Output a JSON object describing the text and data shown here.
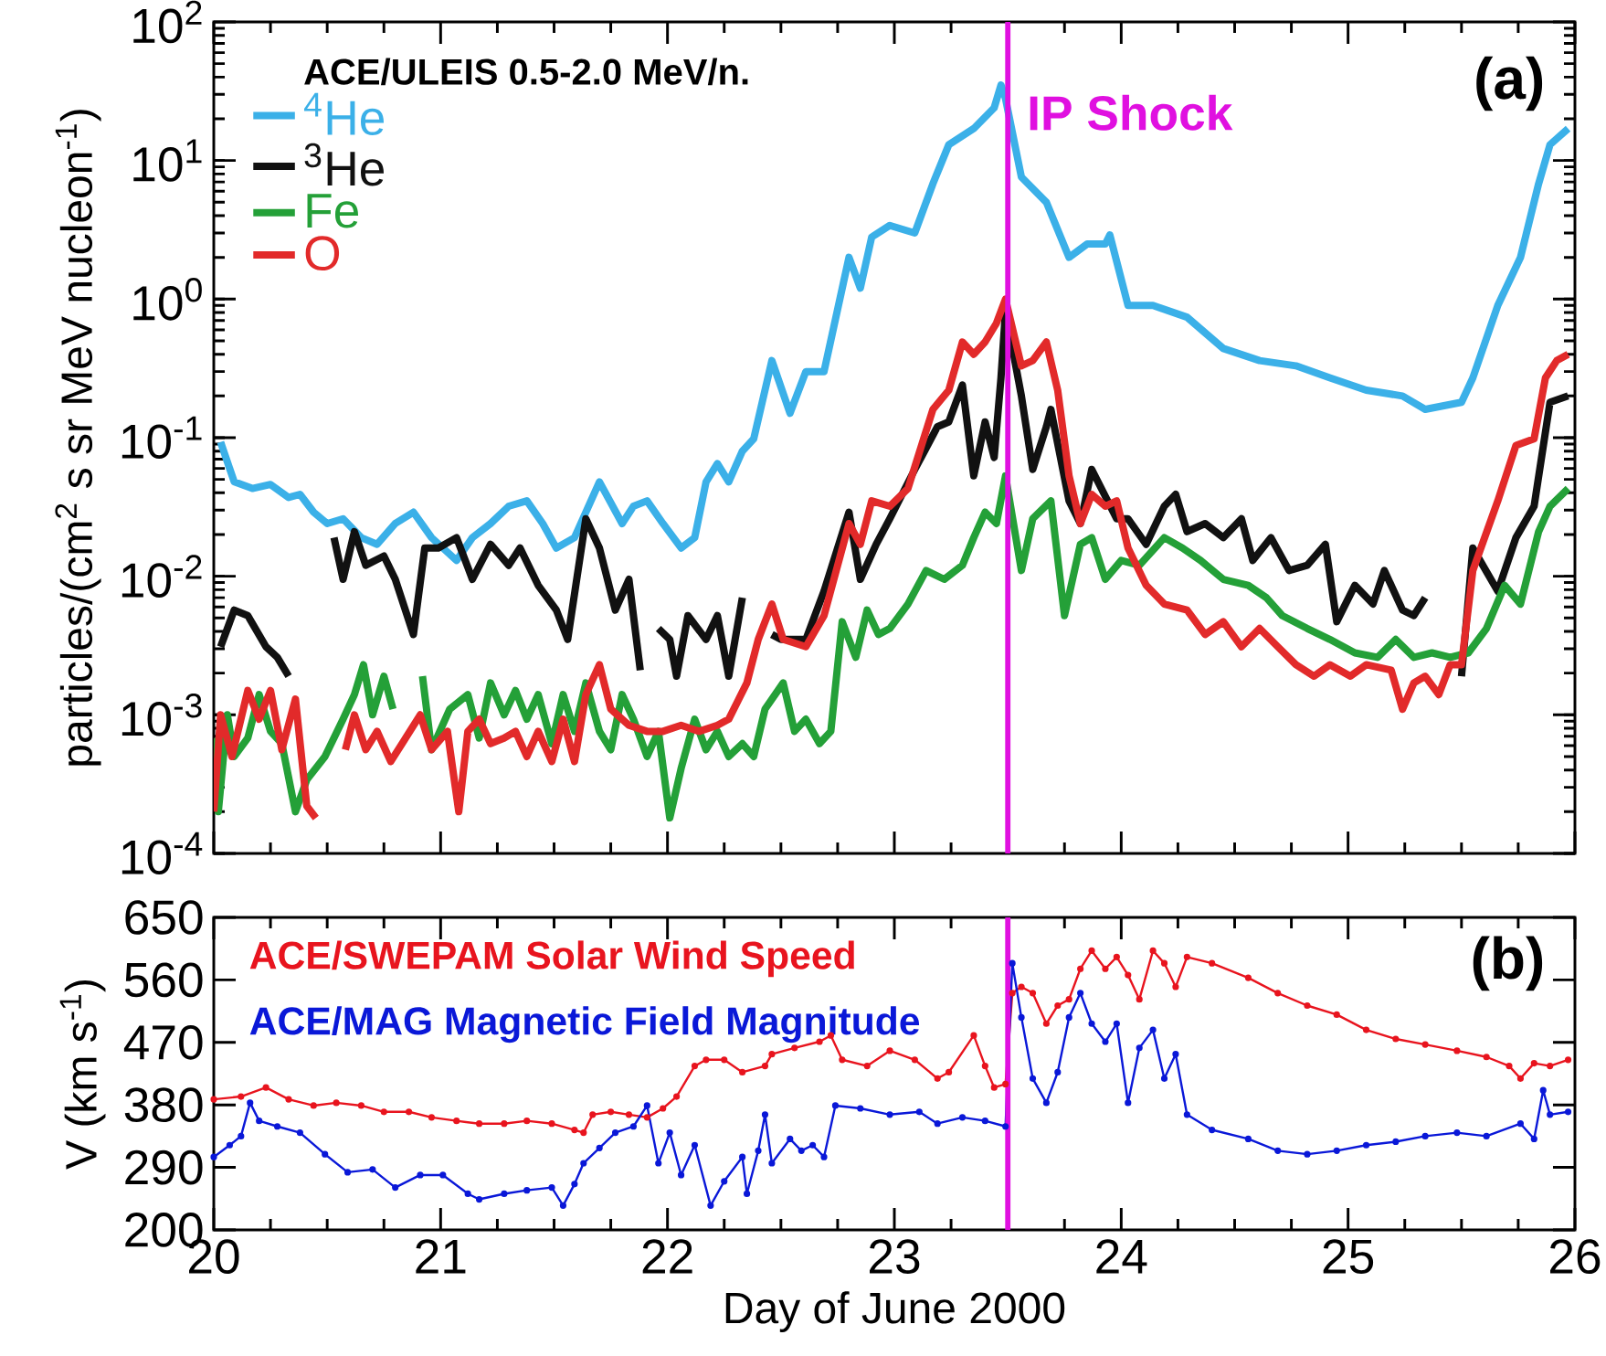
{
  "chart_data": [
    {
      "type": "line",
      "ylabel": "particles/(cm$^{2}$ s sr MeV nucleon$^{-1}$)",
      "legend_title": "ACE/ULEIS 0.5-2.0 MeV/n.",
      "legend": "top left",
      "log": "y",
      "marker": "none",
      "line_style": "solid",
      "tick_labels": "y",
      "xlim": [
        20,
        26
      ],
      "xticks": [
        20,
        21,
        22,
        23,
        24,
        25,
        26
      ],
      "ylim": [
        0.0001,
        100
      ],
      "yticks": [
        {
          "value": 0.0001,
          "label": "10$^{-4}$"
        },
        {
          "value": 0.001,
          "label": "10$^{-3}$"
        },
        {
          "value": 0.01,
          "label": "10$^{-2}$"
        },
        {
          "value": 0.1,
          "label": "10$^{-1}$"
        },
        {
          "value": 1,
          "label": "10$^{0}$"
        },
        {
          "value": 10,
          "label": "10$^{1}$"
        },
        {
          "value": 100,
          "label": "10$^{2}$"
        }
      ],
      "ref_lines": [
        {
          "axis": "x",
          "value": 23.5,
          "label": "IP Shock",
          "color": "#e010e0"
        }
      ],
      "annotations": [
        "(a)"
      ],
      "series": [
        {
          "name": "$^{4}$He",
          "color": "#3bb0e8",
          "x": [
            20.03,
            20.09,
            20.17,
            20.25,
            20.33,
            20.38,
            20.44,
            20.5,
            20.57,
            20.65,
            20.72,
            20.8,
            20.88,
            20.96,
            21.07,
            21.14,
            21.22,
            21.3,
            21.38,
            21.45,
            21.51,
            21.59,
            21.7,
            21.8,
            21.85,
            21.91,
            21.98,
            22.06,
            22.12,
            22.17,
            22.22,
            22.27,
            22.33,
            22.38,
            22.46,
            22.54,
            22.61,
            22.69,
            22.8,
            22.85,
            22.9,
            22.98,
            23.09,
            23.17,
            23.24,
            23.35,
            23.44,
            23.47,
            23.49,
            23.56,
            23.67,
            23.77,
            23.85,
            23.93,
            23.95,
            24.03,
            24.14,
            24.29,
            24.45,
            24.61,
            24.77,
            24.92,
            25.08,
            25.24,
            25.34,
            25.5,
            25.55,
            25.66,
            25.76,
            25.84,
            25.89,
            25.97
          ],
          "values": [
            0.093,
            0.048,
            0.043,
            0.046,
            0.037,
            0.039,
            0.029,
            0.024,
            0.026,
            0.019,
            0.017,
            0.024,
            0.029,
            0.019,
            0.013,
            0.019,
            0.024,
            0.032,
            0.035,
            0.024,
            0.016,
            0.019,
            0.048,
            0.024,
            0.032,
            0.035,
            0.024,
            0.016,
            0.019,
            0.048,
            0.065,
            0.048,
            0.08,
            0.098,
            0.36,
            0.15,
            0.3,
            0.3,
            2.0,
            1.2,
            2.8,
            3.4,
            3.0,
            6.8,
            13,
            17,
            24,
            35,
            28,
            7.6,
            5.0,
            2.0,
            2.5,
            2.5,
            2.9,
            0.9,
            0.9,
            0.74,
            0.44,
            0.36,
            0.33,
            0.27,
            0.22,
            0.2,
            0.16,
            0.18,
            0.27,
            0.9,
            2.0,
            6.8,
            13,
            17
          ]
        },
        {
          "name": "$^{3}$He",
          "color": "#111111",
          "x": [
            20.03,
            20.09,
            20.15,
            20.23,
            20.28,
            20.33,
            20.43,
            20.53,
            20.57,
            20.62,
            20.67,
            20.75,
            20.8,
            20.88,
            20.93,
            20.99,
            21.07,
            21.14,
            21.22,
            21.3,
            21.35,
            21.43,
            21.51,
            21.56,
            21.64,
            21.7,
            21.77,
            21.83,
            21.88,
            21.92,
            21.96,
            22.01,
            22.04,
            22.09,
            22.17,
            22.22,
            22.27,
            22.33,
            22.4,
            22.46,
            22.5,
            22.61,
            22.69,
            22.8,
            22.85,
            22.92,
            22.98,
            23.09,
            23.19,
            23.24,
            23.3,
            23.35,
            23.4,
            23.44,
            23.47,
            23.49,
            23.56,
            23.61,
            23.67,
            23.69,
            23.77,
            23.82,
            23.87,
            23.98,
            24.03,
            24.11,
            24.19,
            24.24,
            24.29,
            24.37,
            24.45,
            24.53,
            24.58,
            24.66,
            24.74,
            24.82,
            24.9,
            24.95,
            25.03,
            25.11,
            25.16,
            25.24,
            25.29,
            25.34,
            25.42,
            25.5,
            25.55,
            25.66,
            25.74,
            25.82,
            25.89,
            25.97
          ],
          "values": [
            0.0031,
            0.0057,
            0.0052,
            0.0031,
            0.0026,
            0.0019,
            null,
            0.019,
            0.0095,
            0.021,
            0.012,
            0.014,
            0.0095,
            0.0038,
            0.016,
            0.016,
            0.019,
            0.0095,
            0.017,
            0.012,
            0.016,
            0.0086,
            0.0057,
            0.0035,
            0.026,
            0.016,
            0.0057,
            0.0095,
            0.0021,
            null,
            0.0042,
            0.0035,
            0.0019,
            0.0052,
            0.0035,
            0.0052,
            0.0019,
            0.007,
            null,
            0.0038,
            0.0035,
            0.0035,
            0.0078,
            0.029,
            0.0095,
            0.017,
            0.026,
            0.059,
            0.12,
            0.13,
            0.24,
            0.053,
            0.13,
            0.072,
            0.27,
            0.82,
            0.2,
            0.059,
            0.12,
            0.16,
            0.035,
            0.024,
            0.059,
            0.026,
            0.026,
            0.017,
            0.032,
            0.039,
            0.021,
            0.024,
            0.019,
            0.026,
            0.013,
            0.019,
            0.011,
            0.012,
            0.017,
            0.0047,
            0.0086,
            0.0063,
            0.011,
            0.0057,
            0.0052,
            0.007,
            null,
            0.0019,
            0.016,
            0.0078,
            0.019,
            0.032,
            0.18,
            0.2
          ]
        },
        {
          "name": "Fe",
          "color": "#24a038",
          "x": [
            20.0,
            20.02,
            20.06,
            20.09,
            20.15,
            20.2,
            20.25,
            20.3,
            20.36,
            20.41,
            20.49,
            20.57,
            20.62,
            20.66,
            20.7,
            20.75,
            20.79,
            20.85,
            20.92,
            20.96,
            21.04,
            21.12,
            21.17,
            21.22,
            21.28,
            21.33,
            21.38,
            21.43,
            21.49,
            21.54,
            21.59,
            21.64,
            21.7,
            21.75,
            21.8,
            21.85,
            21.91,
            21.96,
            22.01,
            22.06,
            22.12,
            22.17,
            22.22,
            22.27,
            22.33,
            22.38,
            22.43,
            22.51,
            22.56,
            22.61,
            22.67,
            22.72,
            22.77,
            22.83,
            22.88,
            22.93,
            22.98,
            23.06,
            23.14,
            23.22,
            23.3,
            23.35,
            23.4,
            23.45,
            23.49,
            23.56,
            23.61,
            23.69,
            23.75,
            23.82,
            23.87,
            23.93,
            24.0,
            24.08,
            24.19,
            24.27,
            24.35,
            24.45,
            24.56,
            24.64,
            24.71,
            24.82,
            24.92,
            25.03,
            25.13,
            25.21,
            25.29,
            25.37,
            25.45,
            25.53,
            25.61,
            25.69,
            25.76,
            25.84,
            25.89,
            25.97
          ],
          "values": [
            0.00068,
            0.0002,
            0.001,
            0.0005,
            0.00068,
            0.0014,
            0.00076,
            0.00062,
            0.0002,
            0.00034,
            0.0005,
            0.00093,
            0.0014,
            0.0023,
            0.001,
            0.0019,
            0.0011,
            null,
            0.0019,
            0.00056,
            0.0011,
            0.0014,
            0.00068,
            0.0017,
            0.001,
            0.0015,
            0.00093,
            0.0014,
            0.00062,
            0.0014,
            0.00076,
            0.0017,
            0.00076,
            0.00056,
            0.0014,
            0.00093,
            0.0005,
            0.00076,
            0.00018,
            0.00041,
            0.00093,
            0.00056,
            0.00076,
            0.0005,
            0.00062,
            0.0005,
            0.0011,
            0.0017,
            0.00076,
            0.00093,
            0.00062,
            0.00076,
            0.0047,
            0.0026,
            0.0057,
            0.0038,
            0.0042,
            0.0063,
            0.011,
            0.0095,
            0.012,
            0.019,
            0.029,
            0.024,
            0.053,
            0.011,
            0.026,
            0.035,
            0.0052,
            0.017,
            0.019,
            0.0095,
            0.013,
            0.012,
            0.019,
            0.016,
            0.013,
            0.0095,
            0.0086,
            0.007,
            0.0052,
            0.0042,
            0.0035,
            0.0028,
            0.0026,
            0.0035,
            0.0026,
            0.0028,
            0.0026,
            0.0028,
            0.0042,
            0.0086,
            0.0063,
            0.021,
            0.032,
            0.043
          ]
        },
        {
          "name": "O",
          "color": "#e22a2a",
          "x": [
            20.0,
            20.03,
            20.08,
            20.15,
            20.2,
            20.25,
            20.3,
            20.36,
            20.41,
            20.45,
            20.52,
            20.58,
            20.62,
            20.67,
            20.72,
            20.78,
            20.83,
            20.91,
            20.96,
            21.03,
            21.08,
            21.12,
            21.17,
            21.22,
            21.28,
            21.33,
            21.38,
            21.43,
            21.49,
            21.54,
            21.59,
            21.64,
            21.7,
            21.75,
            21.83,
            21.91,
            21.98,
            22.06,
            22.14,
            22.22,
            22.27,
            22.35,
            22.4,
            22.46,
            22.51,
            22.61,
            22.69,
            22.8,
            22.85,
            22.9,
            22.98,
            23.06,
            23.17,
            23.24,
            23.3,
            23.35,
            23.4,
            23.45,
            23.49,
            23.56,
            23.61,
            23.67,
            23.72,
            23.77,
            23.82,
            23.87,
            23.93,
            23.98,
            24.03,
            24.11,
            24.19,
            24.29,
            24.37,
            24.45,
            24.53,
            24.61,
            24.69,
            24.77,
            24.85,
            24.92,
            25.01,
            25.08,
            25.19,
            25.24,
            25.29,
            25.34,
            25.4,
            25.45,
            25.5,
            25.55,
            25.66,
            25.74,
            25.82,
            25.87,
            25.92,
            25.97
          ],
          "values": [
            0.0002,
            0.001,
            0.0005,
            0.0015,
            0.00093,
            0.0015,
            0.00056,
            0.0013,
            0.00022,
            0.00018,
            null,
            0.00056,
            0.001,
            0.00056,
            0.00076,
            0.00046,
            0.00062,
            0.001,
            0.00056,
            0.00076,
            0.0002,
            0.00076,
            0.00093,
            0.00062,
            0.00068,
            0.00076,
            0.0005,
            0.00076,
            0.00046,
            0.00093,
            0.00046,
            0.0014,
            0.0023,
            0.0011,
            0.00084,
            0.00076,
            0.00076,
            0.00084,
            0.00076,
            0.00084,
            0.00093,
            0.0017,
            0.0035,
            0.0063,
            0.0035,
            0.0031,
            0.0052,
            0.024,
            0.017,
            0.035,
            0.032,
            0.043,
            0.16,
            0.22,
            0.49,
            0.4,
            0.49,
            0.67,
            1.0,
            0.33,
            0.36,
            0.49,
            0.22,
            0.053,
            0.024,
            0.039,
            0.032,
            0.035,
            0.016,
            0.0086,
            0.0063,
            0.0057,
            0.0038,
            0.0047,
            0.0031,
            0.0042,
            0.0031,
            0.0023,
            0.0019,
            0.0023,
            0.0019,
            0.0023,
            0.0021,
            0.0011,
            0.0017,
            0.0019,
            0.0014,
            0.0023,
            0.0023,
            0.011,
            0.035,
            0.088,
            0.098,
            0.27,
            0.36,
            0.4
          ]
        }
      ]
    },
    {
      "type": "line",
      "xlabel": "Day of June 2000",
      "ylabel": "V (km s$^{-1}$)",
      "marker": "circle",
      "line_style": "solid",
      "xlim": [
        20,
        26
      ],
      "xticks": [
        20,
        21,
        22,
        23,
        24,
        25,
        26
      ],
      "ylim": [
        200,
        650
      ],
      "yticks": [
        200,
        290,
        380,
        470,
        560,
        650
      ],
      "ref_lines": [
        {
          "axis": "x",
          "value": 23.5,
          "color": "#e010e0"
        }
      ],
      "annotations": [
        "(b)"
      ],
      "series": [
        {
          "name": "ACE/SWEPAM  Solar Wind Speed",
          "color": "#e8141e",
          "x": [
            20.0,
            20.12,
            20.23,
            20.33,
            20.44,
            20.54,
            20.65,
            20.75,
            20.86,
            20.96,
            21.07,
            21.17,
            21.28,
            21.38,
            21.49,
            21.59,
            21.63,
            21.67,
            21.75,
            21.83,
            21.91,
            21.98,
            22.04,
            22.12,
            22.17,
            22.25,
            22.33,
            22.43,
            22.46,
            22.56,
            22.67,
            22.72,
            22.77,
            22.88,
            22.98,
            23.09,
            23.19,
            23.24,
            23.35,
            23.4,
            23.44,
            23.49,
            23.52,
            23.56,
            23.61,
            23.67,
            23.72,
            23.77,
            23.82,
            23.87,
            23.93,
            23.98,
            24.03,
            24.08,
            24.14,
            24.19,
            24.24,
            24.29,
            24.4,
            24.56,
            24.69,
            24.82,
            24.95,
            25.08,
            25.21,
            25.34,
            25.48,
            25.61,
            25.71,
            25.76,
            25.82,
            25.89,
            25.97
          ],
          "values": [
            388,
            392,
            405,
            388,
            379,
            383,
            379,
            370,
            370,
            362,
            357,
            353,
            353,
            357,
            353,
            344,
            340,
            366,
            370,
            366,
            362,
            375,
            392,
            436,
            445,
            445,
            427,
            436,
            453,
            462,
            471,
            480,
            445,
            436,
            458,
            445,
            418,
            427,
            480,
            436,
            405,
            410,
            541,
            550,
            541,
            497,
            523,
            532,
            576,
            602,
            576,
            593,
            567,
            532,
            602,
            584,
            550,
            593,
            584,
            563,
            541,
            523,
            510,
            488,
            475,
            467,
            458,
            449,
            436,
            418,
            440,
            436,
            445
          ]
        },
        {
          "name": "ACE/MAG  Magnetic Field Magnitude",
          "color": "#0a18d8",
          "x": [
            20.0,
            20.07,
            20.12,
            20.16,
            20.2,
            20.28,
            20.38,
            20.49,
            20.59,
            20.7,
            20.8,
            20.91,
            21.01,
            21.12,
            21.17,
            21.28,
            21.38,
            21.49,
            21.54,
            21.59,
            21.63,
            21.7,
            21.77,
            21.85,
            21.91,
            21.96,
            22.01,
            22.06,
            22.12,
            22.19,
            22.25,
            22.33,
            22.35,
            22.4,
            22.43,
            22.46,
            22.54,
            22.59,
            22.64,
            22.69,
            22.74,
            22.85,
            22.98,
            23.11,
            23.19,
            23.3,
            23.4,
            23.49,
            23.52,
            23.56,
            23.61,
            23.67,
            23.72,
            23.77,
            23.82,
            23.87,
            23.93,
            23.98,
            24.03,
            24.08,
            24.14,
            24.19,
            24.24,
            24.29,
            24.4,
            24.56,
            24.69,
            24.82,
            24.95,
            25.08,
            25.21,
            25.34,
            25.48,
            25.61,
            25.76,
            25.82,
            25.86,
            25.89,
            25.97
          ],
          "values": [
            305,
            322,
            335,
            383,
            357,
            349,
            340,
            309,
            283,
            287,
            261,
            279,
            279,
            252,
            244,
            252,
            257,
            261,
            235,
            266,
            296,
            318,
            340,
            349,
            379,
            296,
            340,
            279,
            322,
            235,
            270,
            305,
            252,
            314,
            366,
            296,
            331,
            314,
            322,
            305,
            379,
            375,
            366,
            370,
            353,
            362,
            357,
            349,
            584,
            506,
            418,
            383,
            427,
            506,
            541,
            497,
            471,
            497,
            383,
            462,
            488,
            418,
            453,
            366,
            344,
            331,
            314,
            309,
            314,
            322,
            327,
            335,
            340,
            335,
            353,
            331,
            401,
            366,
            370
          ]
        }
      ]
    }
  ]
}
